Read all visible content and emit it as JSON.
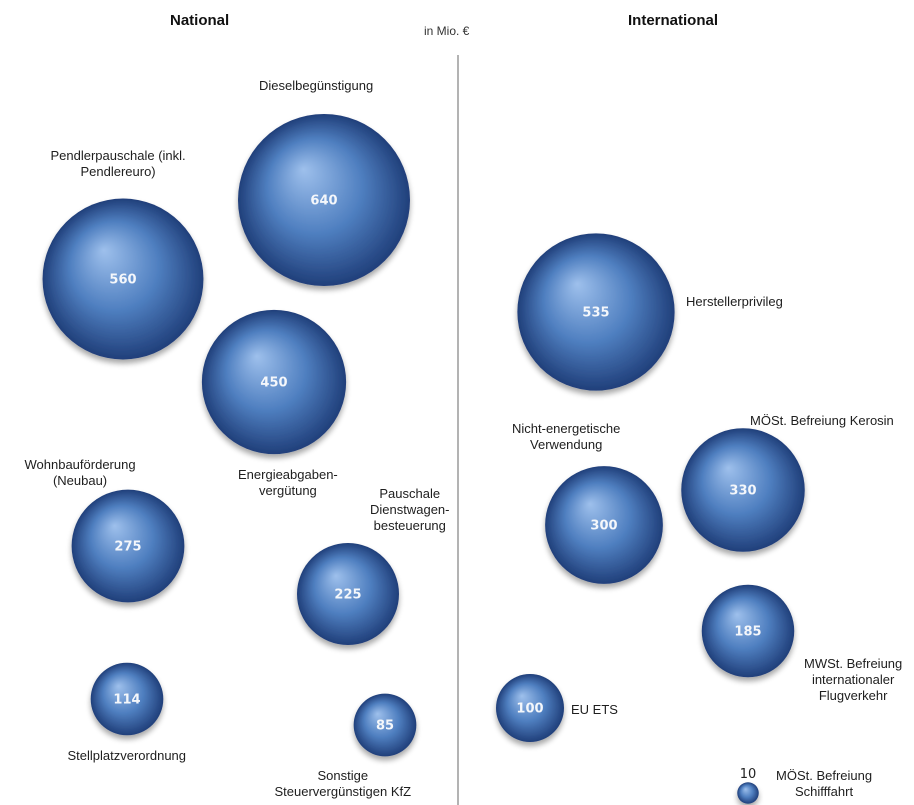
{
  "header": {
    "left_title": "National",
    "right_title": "International",
    "unit": "in Mio. €"
  },
  "colors": {
    "bubble_light": "#9ec0ec",
    "bubble_mid": "#4f7fc0",
    "bubble_dark": "#203f7a",
    "divider": "#9a9a9a"
  },
  "chart_data": {
    "type": "bubble",
    "unit": "in Mio. €",
    "groups": [
      {
        "name": "National",
        "items": [
          {
            "label": "Dieselbegünstigung",
            "value": 640
          },
          {
            "label": "Pendlerpauschale (inkl.\nPendlereuro)",
            "value": 560
          },
          {
            "label": "Energieabgaben-\nvergütung",
            "value": 450
          },
          {
            "label": "Wohnbauförderung\n(Neubau)",
            "value": 275
          },
          {
            "label": "Pauschale\nDienstwagen-\nbesteuerung",
            "value": 225
          },
          {
            "label": "Stellplatzverordnung",
            "value": 114
          },
          {
            "label": "Sonstige\nSteuervergünstigen KfZ",
            "value": 85
          }
        ]
      },
      {
        "name": "International",
        "items": [
          {
            "label": "Herstellerprivileg",
            "value": 535
          },
          {
            "label": "MÖSt. Befreiung Kerosin",
            "value": 330
          },
          {
            "label": "Nicht-energetische\nVerwendung",
            "value": 300
          },
          {
            "label": "MWSt. Befreiung\ninternationaler\nFlugverkehr",
            "value": 185
          },
          {
            "label": "EU ETS",
            "value": 100
          },
          {
            "label": "MÖSt. Befreiung\nSchifffahrt",
            "value": 10
          }
        ]
      }
    ]
  }
}
